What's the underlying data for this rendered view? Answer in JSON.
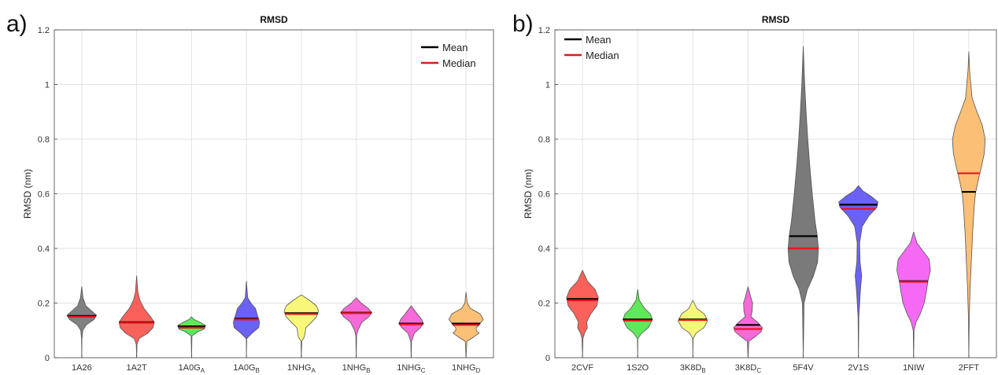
{
  "chart_data": [
    {
      "panel": "a)",
      "type": "violin",
      "title": "RMSD",
      "ylabel": "RMSD (nm)",
      "ylim": [
        0,
        1.2
      ],
      "yticks": [
        "0",
        "0.2",
        "0.4",
        "0.6",
        "0.8",
        "1",
        "1.2"
      ],
      "yticks_values": [
        0,
        0.2,
        0.4,
        0.6,
        0.8,
        1.0,
        1.2
      ],
      "grid": true,
      "legend_position": "top-right",
      "legend": [
        {
          "label": "Mean",
          "color": "#000000"
        },
        {
          "label": "Median",
          "color": "#e8141e"
        }
      ],
      "categories": [
        {
          "label": "1A26",
          "sub": "",
          "color": "#808080",
          "min": 0.0,
          "max": 0.26,
          "mean": 0.153,
          "median": 0.15,
          "profile": [
            [
              0.0,
              0.0
            ],
            [
              0.07,
              0.01
            ],
            [
              0.1,
              0.05
            ],
            [
              0.12,
              0.22
            ],
            [
              0.14,
              0.6
            ],
            [
              0.155,
              0.72
            ],
            [
              0.17,
              0.5
            ],
            [
              0.19,
              0.2
            ],
            [
              0.22,
              0.06
            ],
            [
              0.26,
              0.0
            ]
          ]
        },
        {
          "label": "1A2T",
          "sub": "",
          "color": "#f9625a",
          "min": 0.0,
          "max": 0.3,
          "mean": 0.13,
          "median": 0.128,
          "profile": [
            [
              0.0,
              0.0
            ],
            [
              0.05,
              0.02
            ],
            [
              0.07,
              0.12
            ],
            [
              0.09,
              0.55
            ],
            [
              0.11,
              0.8
            ],
            [
              0.13,
              0.86
            ],
            [
              0.15,
              0.68
            ],
            [
              0.18,
              0.36
            ],
            [
              0.21,
              0.16
            ],
            [
              0.24,
              0.06
            ],
            [
              0.3,
              0.0
            ]
          ]
        },
        {
          "label": "1A0G",
          "sub": "A",
          "color": "#5ee85a",
          "min": 0.0,
          "max": 0.15,
          "mean": 0.115,
          "median": 0.11,
          "profile": [
            [
              0.0,
              0.0
            ],
            [
              0.08,
              0.02
            ],
            [
              0.095,
              0.3
            ],
            [
              0.105,
              0.62
            ],
            [
              0.118,
              0.68
            ],
            [
              0.13,
              0.4
            ],
            [
              0.14,
              0.12
            ],
            [
              0.15,
              0.0
            ]
          ]
        },
        {
          "label": "1A0G",
          "sub": "B",
          "color": "#6b62f5",
          "min": 0.0,
          "max": 0.28,
          "mean": 0.143,
          "median": 0.14,
          "profile": [
            [
              0.0,
              0.0
            ],
            [
              0.07,
              0.01
            ],
            [
              0.09,
              0.28
            ],
            [
              0.11,
              0.6
            ],
            [
              0.13,
              0.64
            ],
            [
              0.15,
              0.56
            ],
            [
              0.18,
              0.44
            ],
            [
              0.2,
              0.22
            ],
            [
              0.22,
              0.06
            ],
            [
              0.28,
              0.0
            ]
          ]
        },
        {
          "label": "1NHG",
          "sub": "A",
          "color": "#f8f77a",
          "min": 0.0,
          "max": 0.23,
          "mean": 0.163,
          "median": 0.16,
          "profile": [
            [
              0.0,
              0.0
            ],
            [
              0.06,
              0.02
            ],
            [
              0.075,
              0.14
            ],
            [
              0.09,
              0.18
            ],
            [
              0.11,
              0.22
            ],
            [
              0.13,
              0.5
            ],
            [
              0.15,
              0.74
            ],
            [
              0.17,
              0.84
            ],
            [
              0.19,
              0.74
            ],
            [
              0.21,
              0.4
            ],
            [
              0.23,
              0.0
            ]
          ]
        },
        {
          "label": "1NHG",
          "sub": "B",
          "color": "#f56ad8",
          "min": 0.0,
          "max": 0.22,
          "mean": 0.165,
          "median": 0.163,
          "profile": [
            [
              0.0,
              0.0
            ],
            [
              0.08,
              0.02
            ],
            [
              0.1,
              0.08
            ],
            [
              0.13,
              0.28
            ],
            [
              0.15,
              0.62
            ],
            [
              0.165,
              0.76
            ],
            [
              0.18,
              0.6
            ],
            [
              0.2,
              0.24
            ],
            [
              0.22,
              0.0
            ]
          ]
        },
        {
          "label": "1NHG",
          "sub": "C",
          "color": "#f56ad8",
          "min": 0.0,
          "max": 0.19,
          "mean": 0.125,
          "median": 0.122,
          "profile": [
            [
              0.0,
              0.0
            ],
            [
              0.06,
              0.02
            ],
            [
              0.09,
              0.16
            ],
            [
              0.11,
              0.46
            ],
            [
              0.125,
              0.6
            ],
            [
              0.14,
              0.52
            ],
            [
              0.16,
              0.3
            ],
            [
              0.19,
              0.0
            ]
          ]
        },
        {
          "label": "1NHG",
          "sub": "D",
          "color": "#fbbf76",
          "min": 0.0,
          "max": 0.24,
          "mean": 0.125,
          "median": 0.12,
          "profile": [
            [
              0.0,
              0.0
            ],
            [
              0.06,
              0.04
            ],
            [
              0.075,
              0.36
            ],
            [
              0.09,
              0.64
            ],
            [
              0.1,
              0.5
            ],
            [
              0.11,
              0.5
            ],
            [
              0.12,
              0.64
            ],
            [
              0.14,
              0.84
            ],
            [
              0.16,
              0.7
            ],
            [
              0.18,
              0.22
            ],
            [
              0.2,
              0.06
            ],
            [
              0.24,
              0.0
            ]
          ]
        }
      ]
    },
    {
      "panel": "b)",
      "type": "violin",
      "title": "RMSD",
      "ylabel": "RMSD (nm)",
      "ylim": [
        0,
        1.2
      ],
      "yticks": [
        "0",
        "0.2",
        "0.4",
        "0.6",
        "0.8",
        "1",
        "1.2"
      ],
      "yticks_values": [
        0,
        0.2,
        0.4,
        0.6,
        0.8,
        1.0,
        1.2
      ],
      "grid": true,
      "legend_position": "top-left",
      "legend": [
        {
          "label": "Mean",
          "color": "#000000"
        },
        {
          "label": "Median",
          "color": "#e8141e"
        }
      ],
      "categories": [
        {
          "label": "2CVF",
          "sub": "",
          "color": "#f9625a",
          "min": 0.0,
          "max": 0.32,
          "mean": 0.215,
          "median": 0.21,
          "profile": [
            [
              0.0,
              0.0
            ],
            [
              0.07,
              0.02
            ],
            [
              0.09,
              0.1
            ],
            [
              0.11,
              0.24
            ],
            [
              0.13,
              0.2
            ],
            [
              0.16,
              0.4
            ],
            [
              0.19,
              0.7
            ],
            [
              0.22,
              0.78
            ],
            [
              0.25,
              0.62
            ],
            [
              0.28,
              0.24
            ],
            [
              0.32,
              0.0
            ]
          ]
        },
        {
          "label": "1S2O",
          "sub": "",
          "color": "#5ee85a",
          "min": 0.0,
          "max": 0.25,
          "mean": 0.14,
          "median": 0.136,
          "profile": [
            [
              0.0,
              0.0
            ],
            [
              0.07,
              0.01
            ],
            [
              0.09,
              0.2
            ],
            [
              0.11,
              0.52
            ],
            [
              0.14,
              0.72
            ],
            [
              0.16,
              0.62
            ],
            [
              0.18,
              0.34
            ],
            [
              0.21,
              0.08
            ],
            [
              0.25,
              0.0
            ]
          ]
        },
        {
          "label": "3K8D",
          "sub": "B",
          "color": "#f8f77a",
          "min": 0.0,
          "max": 0.21,
          "mean": 0.14,
          "median": 0.138,
          "profile": [
            [
              0.0,
              0.0
            ],
            [
              0.07,
              0.01
            ],
            [
              0.09,
              0.16
            ],
            [
              0.11,
              0.54
            ],
            [
              0.135,
              0.72
            ],
            [
              0.16,
              0.56
            ],
            [
              0.18,
              0.2
            ],
            [
              0.21,
              0.0
            ]
          ]
        },
        {
          "label": "3K8D",
          "sub": "C",
          "color": "#f56ad8",
          "min": 0.0,
          "max": 0.26,
          "mean": 0.12,
          "median": 0.105,
          "profile": [
            [
              0.0,
              0.0
            ],
            [
              0.06,
              0.04
            ],
            [
              0.075,
              0.32
            ],
            [
              0.095,
              0.64
            ],
            [
              0.11,
              0.7
            ],
            [
              0.13,
              0.46
            ],
            [
              0.15,
              0.14
            ],
            [
              0.17,
              0.2
            ],
            [
              0.2,
              0.22
            ],
            [
              0.22,
              0.14
            ],
            [
              0.26,
              0.0
            ]
          ]
        },
        {
          "label": "5F4V",
          "sub": "",
          "color": "#7a7a7a",
          "min": 0.0,
          "max": 1.14,
          "mean": 0.445,
          "median": 0.4,
          "profile": [
            [
              0.0,
              0.0
            ],
            [
              0.2,
              0.04
            ],
            [
              0.25,
              0.2
            ],
            [
              0.3,
              0.5
            ],
            [
              0.35,
              0.7
            ],
            [
              0.4,
              0.74
            ],
            [
              0.45,
              0.68
            ],
            [
              0.5,
              0.58
            ],
            [
              0.6,
              0.44
            ],
            [
              0.7,
              0.32
            ],
            [
              0.8,
              0.22
            ],
            [
              0.9,
              0.14
            ],
            [
              1.0,
              0.07
            ],
            [
              1.1,
              0.02
            ],
            [
              1.14,
              0.0
            ]
          ]
        },
        {
          "label": "2V1S",
          "sub": "",
          "color": "#6b62f5",
          "min": 0.0,
          "max": 0.63,
          "mean": 0.56,
          "median": 0.545,
          "profile": [
            [
              0.0,
              0.0
            ],
            [
              0.15,
              0.02
            ],
            [
              0.25,
              0.1
            ],
            [
              0.3,
              0.16
            ],
            [
              0.35,
              0.08
            ],
            [
              0.42,
              0.06
            ],
            [
              0.48,
              0.18
            ],
            [
              0.52,
              0.52
            ],
            [
              0.55,
              0.9
            ],
            [
              0.57,
              0.96
            ],
            [
              0.59,
              0.64
            ],
            [
              0.61,
              0.22
            ],
            [
              0.63,
              0.0
            ]
          ]
        },
        {
          "label": "1NIW",
          "sub": "",
          "color": "#f56af5",
          "min": 0.0,
          "max": 0.46,
          "mean": 0.28,
          "median": 0.278,
          "profile": [
            [
              0.0,
              0.0
            ],
            [
              0.1,
              0.02
            ],
            [
              0.13,
              0.12
            ],
            [
              0.16,
              0.32
            ],
            [
              0.2,
              0.52
            ],
            [
              0.24,
              0.62
            ],
            [
              0.28,
              0.7
            ],
            [
              0.32,
              0.82
            ],
            [
              0.36,
              0.76
            ],
            [
              0.39,
              0.46
            ],
            [
              0.42,
              0.16
            ],
            [
              0.46,
              0.0
            ]
          ]
        },
        {
          "label": "2FFT",
          "sub": "",
          "color": "#fbbf76",
          "min": 0.0,
          "max": 1.12,
          "mean": 0.607,
          "median": 0.675,
          "profile": [
            [
              0.0,
              0.0
            ],
            [
              0.15,
              0.02
            ],
            [
              0.25,
              0.06
            ],
            [
              0.35,
              0.12
            ],
            [
              0.45,
              0.18
            ],
            [
              0.55,
              0.26
            ],
            [
              0.6,
              0.32
            ],
            [
              0.65,
              0.46
            ],
            [
              0.7,
              0.62
            ],
            [
              0.75,
              0.76
            ],
            [
              0.8,
              0.8
            ],
            [
              0.85,
              0.66
            ],
            [
              0.9,
              0.4
            ],
            [
              0.95,
              0.16
            ],
            [
              1.05,
              0.04
            ],
            [
              1.12,
              0.0
            ]
          ]
        }
      ]
    }
  ]
}
